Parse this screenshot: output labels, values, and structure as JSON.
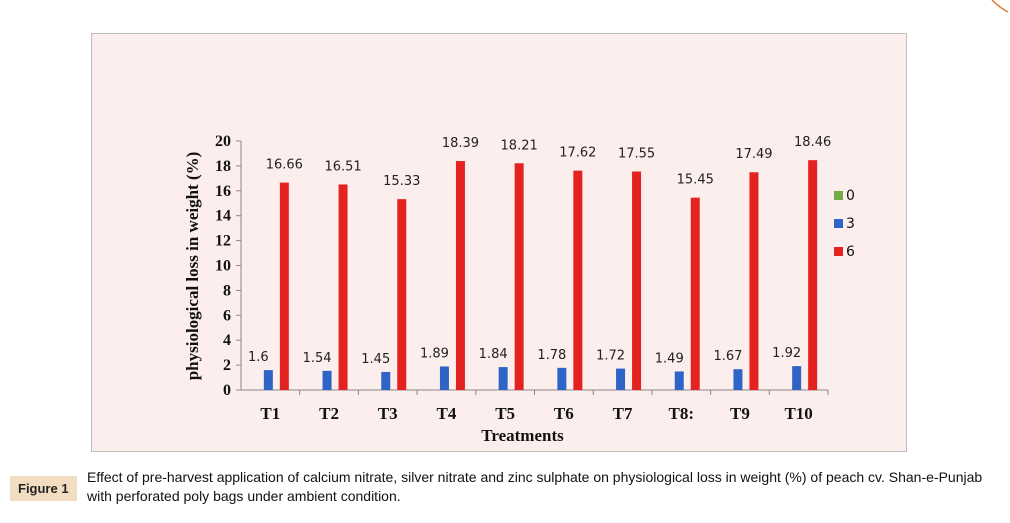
{
  "chart_data": {
    "type": "bar",
    "title": "",
    "xlabel": "Treatments",
    "ylabel": "physiological loss in weight (%)",
    "ylim": [
      0,
      20
    ],
    "yticks": [
      0,
      2,
      4,
      6,
      8,
      10,
      12,
      14,
      16,
      18,
      20
    ],
    "categories": [
      "T1",
      "T2",
      "T3",
      "T4",
      "T5",
      "T6",
      "T7",
      "T8:",
      "T9",
      "T10"
    ],
    "series": [
      {
        "name": "0",
        "color": "#70ad47",
        "values": [
          0,
          0,
          0,
          0,
          0,
          0,
          0,
          0,
          0,
          0
        ],
        "labels": [
          "",
          "",
          "",
          "",
          "",
          "",
          "",
          "",
          "",
          ""
        ]
      },
      {
        "name": "3",
        "color": "#2e63c7",
        "values": [
          1.6,
          1.54,
          1.45,
          1.89,
          1.84,
          1.78,
          1.72,
          1.49,
          1.67,
          1.92
        ],
        "labels": [
          "1.6",
          "1.54",
          "1.45",
          "1.89",
          "1.84",
          "1.78",
          "1.72",
          "1.49",
          "1.67",
          "1.92"
        ]
      },
      {
        "name": "6",
        "color": "#e42320",
        "values": [
          16.66,
          16.51,
          15.33,
          18.39,
          18.21,
          17.62,
          17.55,
          15.45,
          17.49,
          18.46
        ],
        "labels": [
          "16.66",
          "16.51",
          "15.33",
          "18.39",
          "18.21",
          "17.62",
          "17.55",
          "15.45",
          "17.49",
          "18.46"
        ]
      }
    ],
    "legend_position": "right",
    "grid": false
  },
  "caption": {
    "figure_label": "Figure 1",
    "text": "Effect of pre-harvest application of calcium nitrate, silver nitrate and zinc sulphate on physiological loss in weight (%) of peach cv. Shan-e-Punjab with perforated poly bags under ambient condition."
  }
}
